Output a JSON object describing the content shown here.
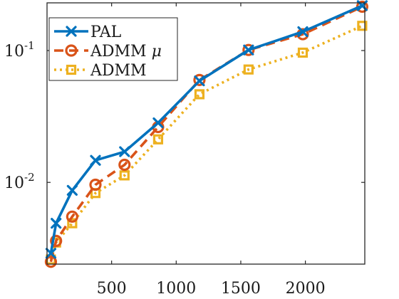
{
  "chart_data": {
    "type": "line",
    "title": "",
    "xlabel": "",
    "ylabel": "",
    "xlim": [
      0,
      2460
    ],
    "ylim": [
      0.0024,
      0.23
    ],
    "yscale": "log",
    "grid": false,
    "legend_position": "top-left",
    "x_ticks": [
      {
        "value": 500,
        "label": "500"
      },
      {
        "value": 1000,
        "label": "1000"
      },
      {
        "value": 1500,
        "label": "1500"
      },
      {
        "value": 2000,
        "label": "2000"
      }
    ],
    "y_ticks": [
      {
        "value": 0.01,
        "base": "10",
        "exp": "-2"
      },
      {
        "value": 0.1,
        "base": "10",
        "exp": "-1"
      }
    ],
    "series": [
      {
        "name": "PAL",
        "color": "#0072BD",
        "marker": "x",
        "linestyle": "solid",
        "x": [
          30,
          70,
          195,
          375,
          600,
          860,
          1180,
          1560,
          1980,
          2440
        ],
        "y": [
          0.0029,
          0.0049,
          0.0087,
          0.0147,
          0.0171,
          0.0283,
          0.0589,
          0.101,
          0.139,
          0.219
        ]
      },
      {
        "name": "ADMM ",
        "name_symbol": "μ",
        "color": "#D95319",
        "marker": "o",
        "linestyle": "dashed",
        "x": [
          30,
          70,
          195,
          375,
          600,
          860,
          1180,
          1560,
          1980,
          2440
        ],
        "y": [
          0.0025,
          0.0036,
          0.0055,
          0.0096,
          0.0136,
          0.0263,
          0.0598,
          0.101,
          0.133,
          0.215
        ]
      },
      {
        "name": "ADMM",
        "color": "#EDB120",
        "marker": "s",
        "linestyle": "dotted",
        "x": [
          30,
          70,
          195,
          375,
          600,
          860,
          1180,
          1560,
          1980,
          2440
        ],
        "y": [
          0.0026,
          0.0035,
          0.0049,
          0.0083,
          0.0113,
          0.0212,
          0.0466,
          0.0718,
          0.0964,
          0.154
        ]
      }
    ]
  }
}
